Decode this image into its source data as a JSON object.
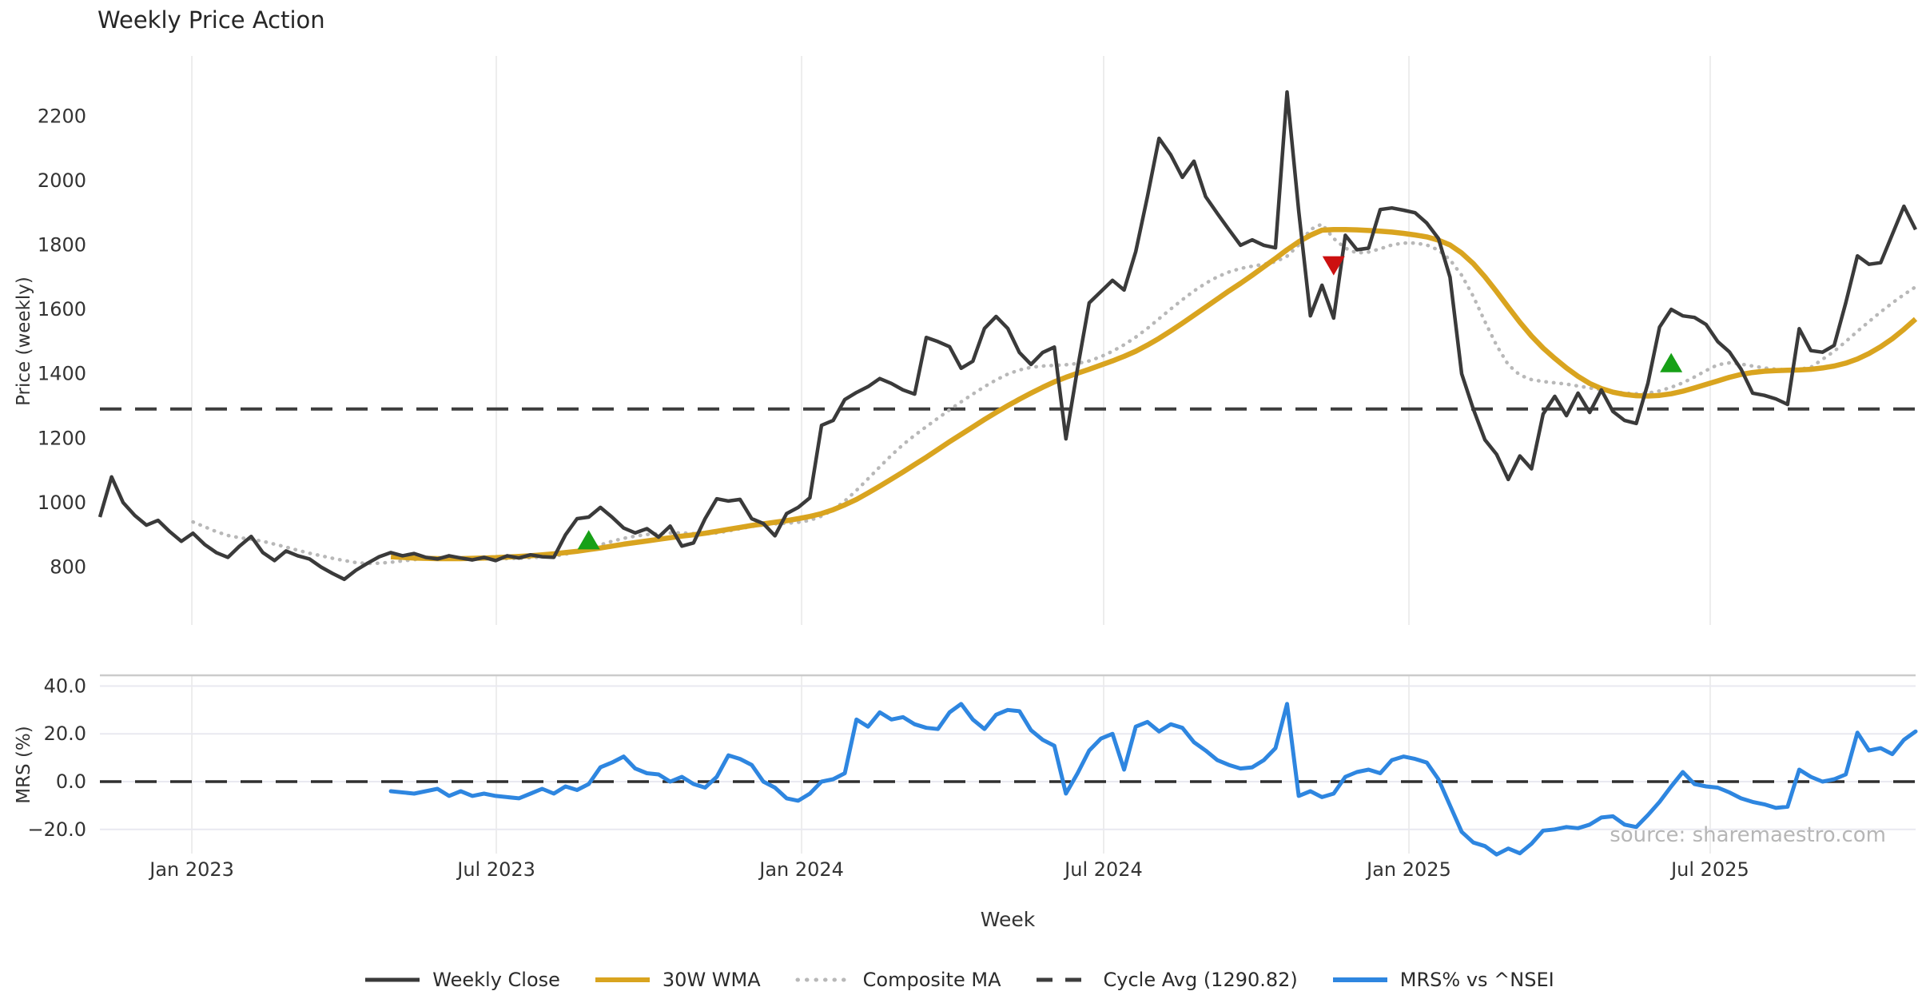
{
  "chart": {
    "title": "Weekly Price Action",
    "xlabel": "Week",
    "ylabel_price": "Price (weekly)",
    "ylabel_mrs": "MRS (%)"
  },
  "watermark": "source: sharemaestro.com",
  "legend": {
    "items": [
      {
        "label": "Weekly Close",
        "color": "#3a3a3a",
        "style": "solid"
      },
      {
        "label": "30W WMA",
        "color": "#d9a41f",
        "style": "solid"
      },
      {
        "label": "Composite MA",
        "color": "#b8b8b8",
        "style": "dotted"
      },
      {
        "label": "Cycle Avg (1290.82)",
        "color": "#3d3d3d",
        "style": "dashed"
      },
      {
        "label": "MRS% vs ^NSEI",
        "color": "#2e86e0",
        "style": "solid"
      }
    ]
  },
  "colors": {
    "weekly_close": "#3a3a3a",
    "wma30": "#d9a41f",
    "composite": "#b8b8b8",
    "cycle_avg": "#3d3d3d",
    "mrs": "#2e86e0",
    "buy_marker": "#17a017",
    "sell_marker": "#cc1010",
    "gridline": "#ededed",
    "mrs_gridline": "#e9e9f0",
    "panel_border": "#cbcbcb",
    "tick_text": "#333333"
  },
  "chart_data": {
    "type": "line",
    "title": "Weekly Price Action",
    "xlabel": "Week",
    "x_tick_labels": [
      {
        "label": "Jan 2023",
        "week": 7.9
      },
      {
        "label": "Jul 2023",
        "week": 34.06
      },
      {
        "label": "Jan 2024",
        "week": 60.29
      },
      {
        "label": "Jul 2024",
        "week": 86.24
      },
      {
        "label": "Jan 2025",
        "week": 112.47
      },
      {
        "label": "Jul 2025",
        "week": 138.35
      }
    ],
    "panels": [
      {
        "name": "price",
        "ylabel": "Price (weekly)",
        "ylim": [
          700,
          2350
        ],
        "yticks": [
          "800",
          "1000",
          "1200",
          "1400",
          "1600",
          "1800",
          "2000",
          "2200"
        ],
        "cycle_avg": 1290.82,
        "series": [
          {
            "name": "Weekly Close",
            "start_week": 0,
            "values": [
              955,
              1080,
              1000,
              960,
              930,
              945,
              910,
              880,
              905,
              870,
              845,
              830,
              865,
              895,
              845,
              820,
              850,
              835,
              825,
              800,
              780,
              762,
              790,
              812,
              832,
              845,
              835,
              842,
              830,
              825,
              835,
              828,
              822,
              830,
              820,
              835,
              828,
              838,
              832,
              830,
              900,
              950,
              955,
              985,
              955,
              921,
              906,
              919,
              893,
              927,
              865,
              875,
              950,
              1012,
              1005,
              1010,
              950,
              935,
              897,
              966,
              985,
              1015,
              1240,
              1255,
              1320,
              1342,
              1360,
              1385,
              1370,
              1350,
              1337,
              1513,
              1500,
              1484,
              1417,
              1439,
              1541,
              1578,
              1541,
              1466,
              1429,
              1466,
              1483,
              1198,
              1417,
              1620,
              1655,
              1690,
              1660,
              1780,
              1950,
              2131,
              2080,
              2010,
              2060,
              1950,
              1898,
              1848,
              1799,
              1816,
              1799,
              1791,
              2275,
              1905,
              1580,
              1675,
              1573,
              1830,
              1785,
              1790,
              1910,
              1915,
              1908,
              1900,
              1868,
              1820,
              1700,
              1400,
              1290,
              1195,
              1150,
              1072,
              1145,
              1105,
              1275,
              1330,
              1270,
              1340,
              1280,
              1350,
              1283,
              1255,
              1246,
              1370,
              1545,
              1600,
              1580,
              1575,
              1553,
              1500,
              1468,
              1415,
              1340,
              1333,
              1322,
              1305,
              1540,
              1472,
              1467,
              1488,
              1620,
              1766,
              1740,
              1745,
              1833,
              1920,
              1848
            ]
          },
          {
            "name": "30W WMA",
            "start_week": 25,
            "values": [
              832,
              830,
              828,
              827,
              826,
              826,
              826,
              827,
              828,
              829,
              831,
              833,
              835,
              838,
              841,
              845,
              849,
              854,
              859,
              865,
              871,
              876,
              881,
              886,
              891,
              896,
              900,
              905,
              911,
              917,
              923,
              929,
              934,
              939,
              944,
              950,
              957,
              966,
              978,
              993,
              1010,
              1030,
              1051,
              1073,
              1095,
              1118,
              1141,
              1165,
              1189,
              1212,
              1235,
              1258,
              1280,
              1301,
              1321,
              1340,
              1358,
              1375,
              1389,
              1402,
              1414,
              1427,
              1440,
              1454,
              1470,
              1489,
              1510,
              1533,
              1557,
              1582,
              1607,
              1632,
              1657,
              1681,
              1706,
              1732,
              1758,
              1785,
              1810,
              1830,
              1846,
              1848,
              1848,
              1847,
              1845,
              1843,
              1840,
              1836,
              1831,
              1825,
              1815,
              1800,
              1775,
              1742,
              1701,
              1655,
              1607,
              1560,
              1517,
              1480,
              1448,
              1418,
              1392,
              1370,
              1354,
              1343,
              1336,
              1332,
              1331,
              1333,
              1338,
              1346,
              1356,
              1367,
              1378,
              1389,
              1398,
              1404,
              1408,
              1410,
              1411,
              1412,
              1414,
              1418,
              1424,
              1433,
              1446,
              1463,
              1484,
              1509,
              1538,
              1570
            ]
          },
          {
            "name": "Composite MA",
            "start_week": 8,
            "values": [
              940,
              925,
              910,
              898,
              891,
              886,
              880,
              871,
              862,
              852,
              843,
              835,
              827,
              820,
              814,
              811,
              812,
              815,
              819,
              823,
              826,
              828,
              828,
              827,
              826,
              825,
              825,
              826,
              827,
              829,
              831,
              834,
              840,
              848,
              858,
              869,
              880,
              889,
              896,
              901,
              904,
              906,
              906,
              904,
              903,
              906,
              912,
              919,
              926,
              931,
              934,
              936,
              939,
              945,
              958,
              978,
              1005,
              1038,
              1074,
              1111,
              1147,
              1180,
              1209,
              1236,
              1262,
              1288,
              1313,
              1337,
              1360,
              1381,
              1399,
              1412,
              1420,
              1424,
              1426,
              1428,
              1432,
              1440,
              1453,
              1470,
              1490,
              1514,
              1541,
              1571,
              1601,
              1630,
              1657,
              1681,
              1701,
              1716,
              1727,
              1734,
              1740,
              1748,
              1765,
              1800,
              1848,
              1865,
              1820,
              1790,
              1775,
              1778,
              1788,
              1800,
              1806,
              1806,
              1800,
              1784,
              1754,
              1706,
              1640,
              1562,
              1488,
              1428,
              1396,
              1382,
              1376,
              1372,
              1368,
              1362,
              1356,
              1350,
              1344,
              1340,
              1338,
              1340,
              1347,
              1358,
              1372,
              1390,
              1410,
              1428,
              1434,
              1430,
              1424,
              1418,
              1414,
              1412,
              1414,
              1420,
              1445,
              1470,
              1500,
              1532,
              1562,
              1592,
              1620,
              1646,
              1670
            ]
          }
        ],
        "markers": [
          {
            "type": "buy",
            "shape": "triangle-up",
            "week": 42,
            "value": 880
          },
          {
            "type": "buy",
            "shape": "triangle-up",
            "week": 135,
            "value": 1430
          },
          {
            "type": "sell",
            "shape": "triangle-down",
            "week": 106,
            "value": 1740
          }
        ]
      },
      {
        "name": "mrs",
        "ylabel": "MRS (%)",
        "ylim": [
          -33,
          44
        ],
        "yticks": [
          {
            "v": 40,
            "label": "40.0"
          },
          {
            "v": 20,
            "label": "20.0"
          },
          {
            "v": 0,
            "label": "0.0"
          },
          {
            "v": -20,
            "label": "−20.0"
          }
        ],
        "zero_line": 0,
        "series": [
          {
            "name": "MRS% vs ^NSEI",
            "start_week": 25,
            "values": [
              -4,
              -4.5,
              -5,
              -4,
              -3,
              -6,
              -4,
              -6,
              -5,
              -6,
              -6.5,
              -7,
              -5,
              -3,
              -5,
              -2,
              -3.5,
              -1,
              6,
              8,
              10.5,
              5.5,
              3.5,
              3,
              0,
              2,
              -1,
              -2.5,
              2,
              11,
              9.5,
              7,
              0,
              -2.5,
              -7,
              -8,
              -5,
              0,
              1,
              3.5,
              26,
              23,
              29,
              26,
              27,
              24,
              22.5,
              22,
              29,
              32.5,
              26,
              22,
              28,
              30,
              29.5,
              21.5,
              17.5,
              15,
              -5,
              3.5,
              13,
              18,
              20,
              5,
              23,
              25,
              21,
              24,
              22.5,
              16.5,
              13,
              9,
              7,
              5.5,
              6,
              9,
              14,
              32.5,
              -6,
              -4,
              -6.5,
              -5,
              2,
              4,
              5,
              3.5,
              9,
              10.5,
              9.5,
              8,
              1,
              -10,
              -21,
              -25.5,
              -27,
              -30.5,
              -28,
              -30,
              -26,
              -20.5,
              -20,
              -19,
              -19.5,
              -18,
              -15,
              -14.5,
              -18,
              -19,
              -14,
              -8.5,
              -2,
              4,
              -1,
              -2,
              -2.5,
              -4.5,
              -7,
              -8.5,
              -9.5,
              -11,
              -10.5,
              5,
              2,
              0,
              1,
              3,
              20.5,
              13,
              14,
              11.5,
              17.5,
              21
            ]
          }
        ]
      }
    ]
  }
}
